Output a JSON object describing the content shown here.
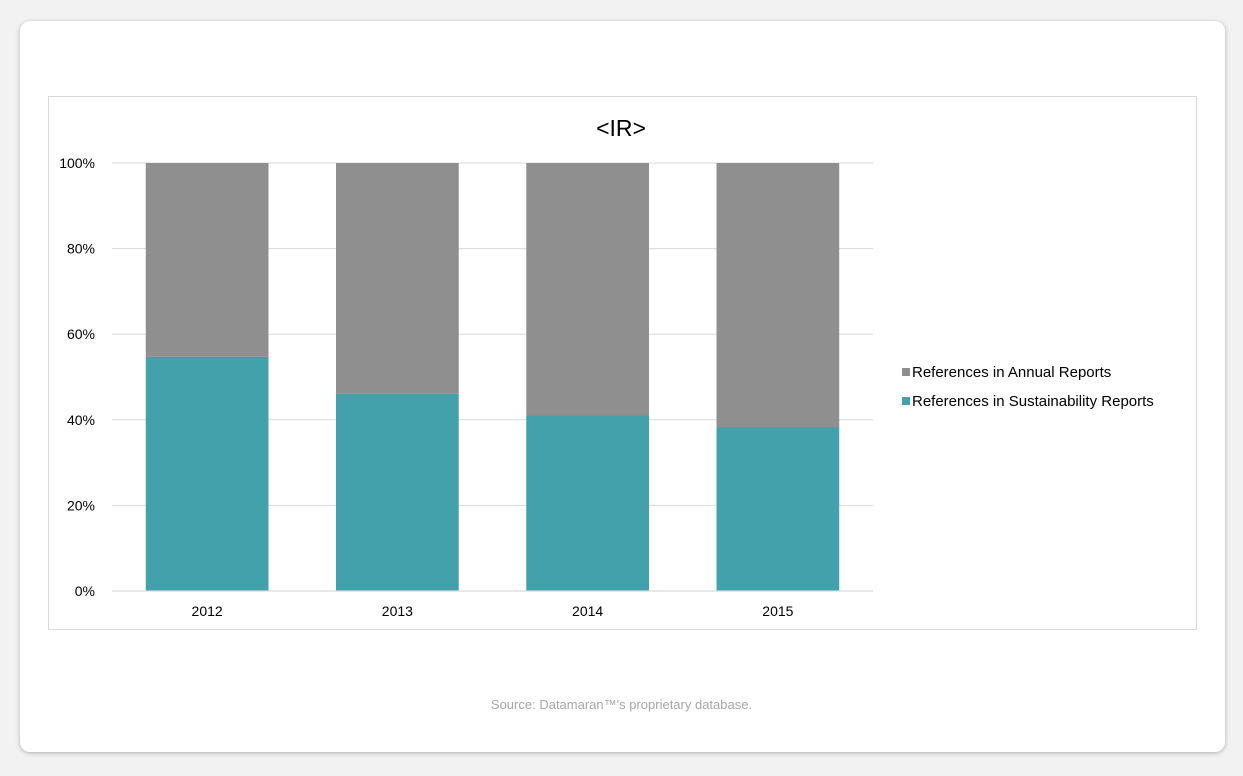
{
  "chart_data": {
    "type": "bar",
    "stacked": true,
    "title": "<IR>",
    "categories": [
      "2012",
      "2013",
      "2014",
      "2015"
    ],
    "series": [
      {
        "name": "References in Sustainability Reports",
        "color": "#42a1aa",
        "values": [
          54.7,
          46.1,
          41.0,
          38.2
        ]
      },
      {
        "name": "References in Annual Reports",
        "color": "#8f8f8f",
        "values": [
          45.3,
          53.9,
          59.0,
          61.8
        ]
      }
    ],
    "ylim": [
      0,
      100
    ],
    "yticks": [
      "0%",
      "20%",
      "40%",
      "60%",
      "80%",
      "100%"
    ],
    "grid": true,
    "legend_position": "right"
  },
  "footer": {
    "source": "Source: Datamaran™'s proprietary database."
  }
}
